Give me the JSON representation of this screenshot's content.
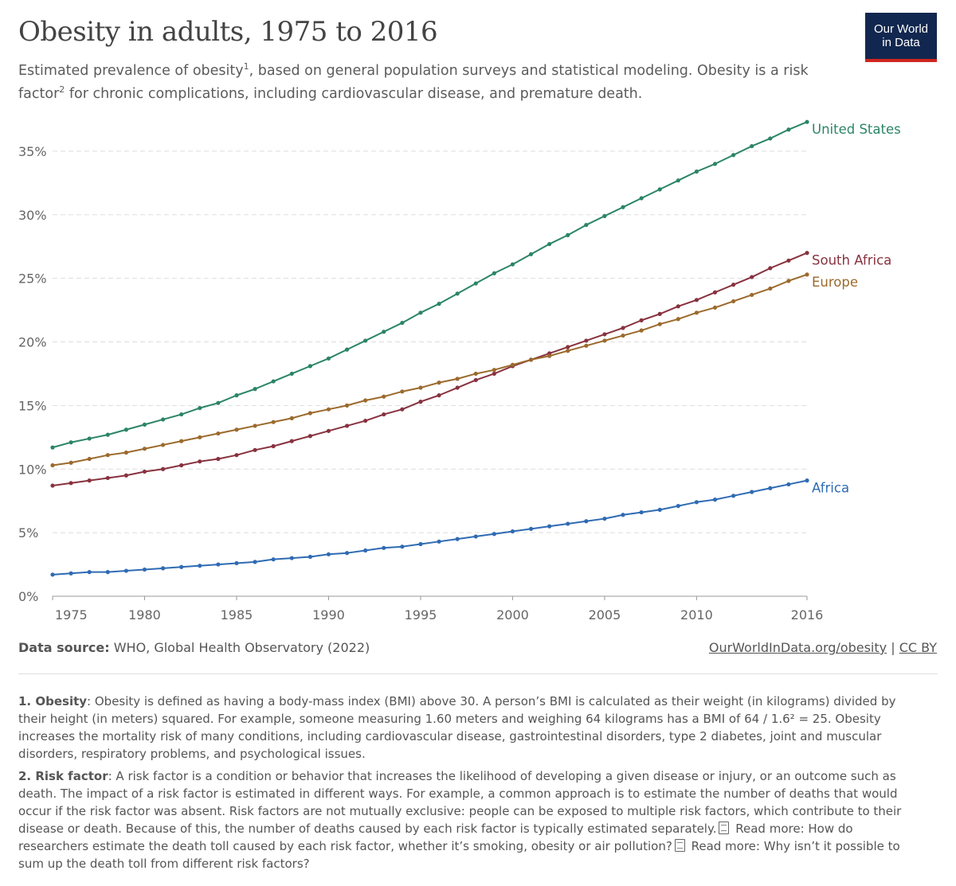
{
  "header": {
    "title": "Obesity in adults, 1975 to 2016",
    "subtitle_part1": "Estimated prevalence of obesity",
    "subtitle_sup1": "1",
    "subtitle_part2": ", based on general population surveys and statistical modeling. Obesity is a risk factor",
    "subtitle_sup2": "2",
    "subtitle_part3": " for chronic complications, including cardiovascular disease, and premature death.",
    "logo_line1": "Our World",
    "logo_line2": "in Data"
  },
  "colors": {
    "United States": "#2b8565",
    "South Africa": "#88323f",
    "Europe": "#9b6a2c",
    "Africa": "#2f6bb3",
    "logo_bg": "#12274f",
    "logo_accent": "#ce261e"
  },
  "chart_data": {
    "type": "line",
    "title": "Obesity in adults, 1975 to 2016",
    "x_start": 1975,
    "x_end": 2016,
    "xlim": [
      1975,
      2016
    ],
    "ylim": [
      0,
      37.5
    ],
    "x_ticks": [
      1975,
      1980,
      1985,
      1990,
      1995,
      2000,
      2005,
      2010,
      2016
    ],
    "x_tick_labels": [
      "1975",
      "1980",
      "1985",
      "1990",
      "1995",
      "2000",
      "2005",
      "2010",
      "2016"
    ],
    "y_ticks": [
      0,
      5,
      10,
      15,
      20,
      25,
      30,
      35
    ],
    "y_tick_labels": [
      "0%",
      "5%",
      "10%",
      "15%",
      "20%",
      "25%",
      "30%",
      "35%"
    ],
    "grid": "horizontal dashed",
    "legend": "inline labels at line ends (right)",
    "series": [
      {
        "name": "United States",
        "color": "#2b8565",
        "values": [
          11.7,
          12.1,
          12.4,
          12.7,
          13.1,
          13.5,
          13.9,
          14.3,
          14.8,
          15.2,
          15.8,
          16.3,
          16.9,
          17.5,
          18.1,
          18.7,
          19.4,
          20.1,
          20.8,
          21.5,
          22.3,
          23.0,
          23.8,
          24.6,
          25.4,
          26.1,
          26.9,
          27.7,
          28.4,
          29.2,
          29.9,
          30.6,
          31.3,
          32.0,
          32.7,
          33.4,
          34.0,
          34.7,
          35.4,
          36.0,
          36.7,
          37.3
        ]
      },
      {
        "name": "South Africa",
        "color": "#88323f",
        "values": [
          8.7,
          8.9,
          9.1,
          9.3,
          9.5,
          9.8,
          10.0,
          10.3,
          10.6,
          10.8,
          11.1,
          11.5,
          11.8,
          12.2,
          12.6,
          13.0,
          13.4,
          13.8,
          14.3,
          14.7,
          15.3,
          15.8,
          16.4,
          17.0,
          17.5,
          18.1,
          18.6,
          19.1,
          19.6,
          20.1,
          20.6,
          21.1,
          21.7,
          22.2,
          22.8,
          23.3,
          23.9,
          24.5,
          25.1,
          25.8,
          26.4,
          27.0
        ]
      },
      {
        "name": "Europe",
        "color": "#9b6a2c",
        "values": [
          10.3,
          10.5,
          10.8,
          11.1,
          11.3,
          11.6,
          11.9,
          12.2,
          12.5,
          12.8,
          13.1,
          13.4,
          13.7,
          14.0,
          14.4,
          14.7,
          15.0,
          15.4,
          15.7,
          16.1,
          16.4,
          16.8,
          17.1,
          17.5,
          17.8,
          18.2,
          18.6,
          18.9,
          19.3,
          19.7,
          20.1,
          20.5,
          20.9,
          21.4,
          21.8,
          22.3,
          22.7,
          23.2,
          23.7,
          24.2,
          24.8,
          25.3
        ]
      },
      {
        "name": "Africa",
        "color": "#2f6bb3",
        "values": [
          1.7,
          1.8,
          1.9,
          1.9,
          2.0,
          2.1,
          2.2,
          2.3,
          2.4,
          2.5,
          2.6,
          2.7,
          2.9,
          3.0,
          3.1,
          3.3,
          3.4,
          3.6,
          3.8,
          3.9,
          4.1,
          4.3,
          4.5,
          4.7,
          4.9,
          5.1,
          5.3,
          5.5,
          5.7,
          5.9,
          6.1,
          6.4,
          6.6,
          6.8,
          7.1,
          7.4,
          7.6,
          7.9,
          8.2,
          8.5,
          8.8,
          9.1
        ]
      }
    ]
  },
  "footer": {
    "source_label": "Data source:",
    "source_text": " WHO, Global Health Observatory (2022)",
    "link1": "OurWorldInData.org/obesity",
    "separator": " | ",
    "link2": "CC BY"
  },
  "notes": {
    "note1_label": "1. Obesity",
    "note1_text": ": Obesity is defined as having a body-mass index (BMI) above 30. A person’s BMI is calculated as their weight (in kilograms) divided by their height (in meters) squared. For example, someone measuring 1.60 meters and weighing 64 kilograms has a BMI of 64 / 1.6² = 25. Obesity increases the mortality risk of many conditions, including cardiovascular disease, gastrointestinal disorders, type 2 diabetes, joint and muscular disorders, respiratory problems, and psychological issues.",
    "note2_label": "2. Risk factor",
    "note2_text": ": A risk factor is a condition or behavior that increases the likelihood of developing a given disease or injury, or an outcome such as death. The impact of a risk factor is estimated in different ways. For example, a common approach is to estimate the number of deaths that would occur if the risk factor was absent. Risk factors are not mutually exclusive: people can be exposed to multiple risk factors, which contribute to their disease or death. Because of this, the number of deaths caused by each risk factor is typically estimated separately.",
    "note2_readmore1": " Read more: How do researchers estimate the death toll caused by each risk factor, whether it’s smoking, obesity or air pollution?",
    "note2_readmore2": " Read more: Why isn’t it possible to sum up the death toll from different risk factors?"
  }
}
